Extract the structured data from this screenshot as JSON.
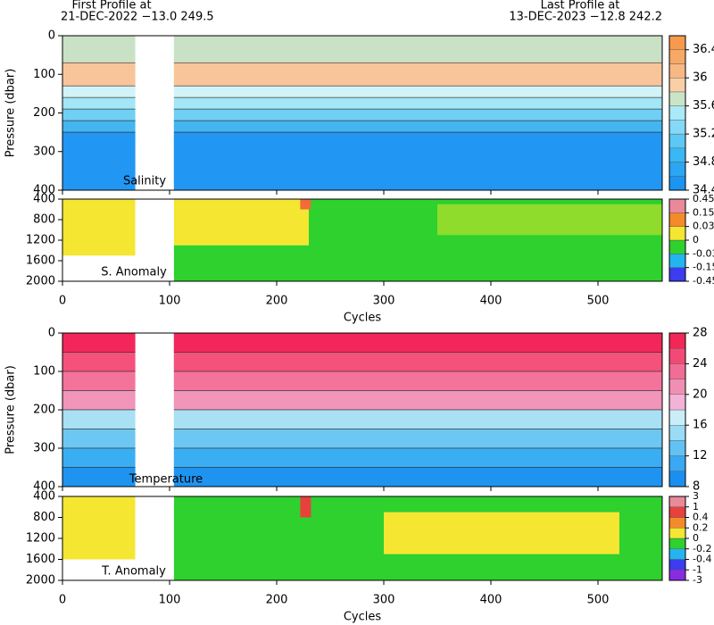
{
  "header": {
    "left_title": "First Profile at",
    "left_info": "21-DEC-2022   −13.0  249.5",
    "right_title": "Last Profile at",
    "right_info": "13-DEC-2023   −12.8  242.2"
  },
  "chart_data": [
    {
      "type": "contour",
      "label": "Salinity",
      "ylabel": "Pressure (dbar)",
      "xlim": [
        0,
        560
      ],
      "xticks": [
        0,
        100,
        200,
        300,
        400,
        500
      ],
      "show_xtick_labels": false,
      "ylim": [
        400,
        0
      ],
      "yticks": [
        0,
        100,
        200,
        300,
        400
      ],
      "gap": [
        68,
        104
      ],
      "bands": [
        {
          "top": 0,
          "bottom": 70,
          "color": "#c9e2c6"
        },
        {
          "top": 70,
          "bottom": 130,
          "color": "#f8c59b"
        },
        {
          "top": 130,
          "bottom": 160,
          "color": "#d2f3f7"
        },
        {
          "top": 160,
          "bottom": 190,
          "color": "#a3e6f6"
        },
        {
          "top": 190,
          "bottom": 220,
          "color": "#6fd0f4"
        },
        {
          "top": 220,
          "bottom": 250,
          "color": "#45b5f2"
        },
        {
          "top": 250,
          "bottom": 400,
          "color": "#2196f3"
        }
      ],
      "colorbar": {
        "scale": "linear",
        "clim": [
          34.4,
          36.6
        ],
        "ticks": [
          34.4,
          34.8,
          35.2,
          35.6,
          36,
          36.4
        ],
        "colors": [
          "#1b95f2",
          "#2aa6f3",
          "#3ab7f4",
          "#5dc8f5",
          "#85d9f7",
          "#a9e9f8",
          "#cae4c8",
          "#f9cfa6",
          "#f8b883",
          "#f7a866",
          "#f79a4e"
        ]
      }
    },
    {
      "type": "anomaly",
      "label": "S. Anomaly",
      "xlabel": "Cycles",
      "xlim": [
        0,
        560
      ],
      "xticks": [
        0,
        100,
        200,
        300,
        400,
        500
      ],
      "show_xtick_labels": true,
      "ylim": [
        2000,
        400
      ],
      "yticks": [
        400,
        800,
        1200,
        1600,
        2000
      ],
      "gap": [
        68,
        104
      ],
      "regions": [
        {
          "x0": 0,
          "x1": 68,
          "top": 400,
          "bottom": 1500,
          "color": "#f4e631"
        },
        {
          "x0": 104,
          "x1": 230,
          "top": 400,
          "bottom": 1300,
          "color": "#f4e631"
        },
        {
          "x0": 104,
          "x1": 230,
          "top": 1300,
          "bottom": 2000,
          "color": "#2ed12e"
        },
        {
          "x0": 230,
          "x1": 560,
          "top": 400,
          "bottom": 2000,
          "color": "#2ed12e"
        },
        {
          "x0": 350,
          "x1": 560,
          "top": 500,
          "bottom": 1100,
          "color": "#8fdc2c"
        },
        {
          "x0": 222,
          "x1": 232,
          "top": 400,
          "bottom": 600,
          "color": "#f26b3a"
        }
      ],
      "colorbar": {
        "scale": "index",
        "ticks": [
          -0.45,
          -0.15,
          -0.03,
          0,
          0.03,
          0.15,
          0.45
        ],
        "colors": [
          "#3c3cf0",
          "#24b4f0",
          "#2ed12e",
          "#f4e631",
          "#f58a2a",
          "#e88a9a"
        ]
      }
    },
    {
      "type": "contour",
      "label": "Temperature",
      "ylabel": "Pressure (dbar)",
      "xlim": [
        0,
        560
      ],
      "xticks": [
        0,
        100,
        200,
        300,
        400,
        500
      ],
      "show_xtick_labels": false,
      "ylim": [
        400,
        0
      ],
      "yticks": [
        0,
        100,
        200,
        300,
        400
      ],
      "gap": [
        68,
        104
      ],
      "bands": [
        {
          "top": 0,
          "bottom": 50,
          "color": "#f2265a"
        },
        {
          "top": 50,
          "bottom": 100,
          "color": "#f5517a"
        },
        {
          "top": 100,
          "bottom": 150,
          "color": "#f4739a"
        },
        {
          "top": 150,
          "bottom": 200,
          "color": "#f195bb"
        },
        {
          "top": 200,
          "bottom": 250,
          "color": "#a9e0f3"
        },
        {
          "top": 250,
          "bottom": 300,
          "color": "#6cc8f3"
        },
        {
          "top": 300,
          "bottom": 350,
          "color": "#3aaef3"
        },
        {
          "top": 350,
          "bottom": 400,
          "color": "#1e94f0"
        }
      ],
      "colorbar": {
        "scale": "linear",
        "clim": [
          8,
          28
        ],
        "ticks": [
          8,
          12,
          16,
          20,
          24,
          28
        ],
        "colors": [
          "#1a8ff0",
          "#3aa8f2",
          "#63c2f4",
          "#9adcf5",
          "#c9eef8",
          "#f2b3d6",
          "#f08fb4",
          "#f26d95",
          "#f34a75",
          "#f22757"
        ]
      }
    },
    {
      "type": "anomaly",
      "label": "T. Anomaly",
      "xlabel": "Cycles",
      "xlim": [
        0,
        560
      ],
      "xticks": [
        0,
        100,
        200,
        300,
        400,
        500
      ],
      "show_xtick_labels": true,
      "ylim": [
        2000,
        400
      ],
      "yticks": [
        400,
        800,
        1200,
        1600,
        2000
      ],
      "gap": [
        68,
        104
      ],
      "regions": [
        {
          "x0": 0,
          "x1": 68,
          "top": 400,
          "bottom": 1600,
          "color": "#f4e631"
        },
        {
          "x0": 104,
          "x1": 560,
          "top": 400,
          "bottom": 2000,
          "color": "#2ed12e"
        },
        {
          "x0": 300,
          "x1": 520,
          "top": 700,
          "bottom": 1500,
          "color": "#f4e631"
        },
        {
          "x0": 222,
          "x1": 232,
          "top": 400,
          "bottom": 800,
          "color": "#e8413c"
        }
      ],
      "colorbar": {
        "scale": "index",
        "ticks": [
          -3,
          -1,
          -0.4,
          -0.2,
          0,
          0.2,
          0.4,
          1,
          3
        ],
        "colors": [
          "#8a2be2",
          "#3c3cf0",
          "#24b4f0",
          "#2ed12e",
          "#f4e631",
          "#f58a2a",
          "#e8413c",
          "#e88a9a"
        ]
      }
    }
  ]
}
